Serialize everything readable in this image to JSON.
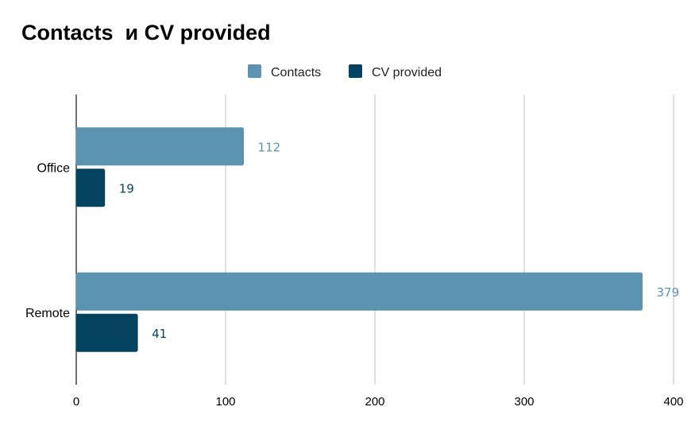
{
  "chart_data": {
    "type": "bar",
    "orientation": "horizontal",
    "title": "Contacts  и CV provided",
    "categories": [
      "Office",
      "Remote"
    ],
    "series": [
      {
        "name": "Contacts",
        "values": [
          112,
          379
        ],
        "color": "#5b93b0"
      },
      {
        "name": "CV provided",
        "values": [
          19,
          41
        ],
        "color": "#04435f"
      }
    ],
    "xlim": [
      0,
      400
    ],
    "xticks": [
      "0",
      "100",
      "200",
      "300",
      "400"
    ],
    "grid": true,
    "legend_position": "top"
  }
}
